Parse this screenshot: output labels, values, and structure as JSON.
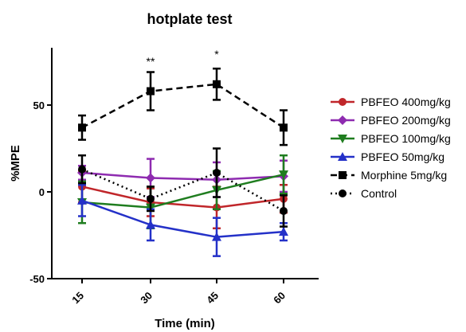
{
  "chart_data": {
    "type": "line",
    "title": "hotplate test",
    "xlabel": "Time (min)",
    "ylabel": "%MPE",
    "x": [
      15,
      30,
      45,
      60
    ],
    "x_tick_labels": [
      "15",
      "30",
      "45",
      "60"
    ],
    "y_ticks": [
      -50,
      0,
      50
    ],
    "y_tick_labels": [
      "-50",
      "0",
      "50"
    ],
    "ylim": [
      -50,
      83
    ],
    "grid": false,
    "legend_position": "right",
    "annotations": [
      {
        "x": 30,
        "y": 73,
        "text": "**"
      },
      {
        "x": 45,
        "y": 77,
        "text": "*"
      }
    ],
    "series": [
      {
        "name": "PBFEO 400mg/kg",
        "color": "#c0262a",
        "marker": "circle",
        "dash": "solid",
        "values": [
          3,
          -6,
          -9,
          -4
        ],
        "errors": [
          9,
          8,
          12,
          8
        ]
      },
      {
        "name": "PBFEO 200mg/kg",
        "color": "#8e2bb0",
        "marker": "diamond",
        "dash": "solid",
        "values": [
          11,
          8,
          7,
          9
        ],
        "errors": [
          4,
          11,
          10,
          9
        ]
      },
      {
        "name": "PBFEO 100mg/kg",
        "color": "#1f7d1f",
        "marker": "triangle-down",
        "dash": "solid",
        "values": [
          -6,
          -9,
          1,
          10
        ],
        "errors": [
          12,
          12,
          11,
          11
        ]
      },
      {
        "name": "PBFEO 50mg/kg",
        "color": "#2431c8",
        "marker": "triangle-up",
        "dash": "solid",
        "values": [
          -5,
          -19,
          -26,
          -23
        ],
        "errors": [
          9,
          9,
          11,
          5
        ]
      },
      {
        "name": "Morphine 5mg/kg",
        "color": "#000000",
        "marker": "square",
        "dash": "dash",
        "values": [
          37,
          58,
          62,
          37
        ],
        "errors": [
          7,
          11,
          9,
          10
        ]
      },
      {
        "name": "Control",
        "color": "#000000",
        "marker": "circle",
        "dash": "dot",
        "values": [
          13,
          -4,
          11,
          -11
        ],
        "errors": [
          8,
          7,
          14,
          9
        ]
      }
    ]
  }
}
